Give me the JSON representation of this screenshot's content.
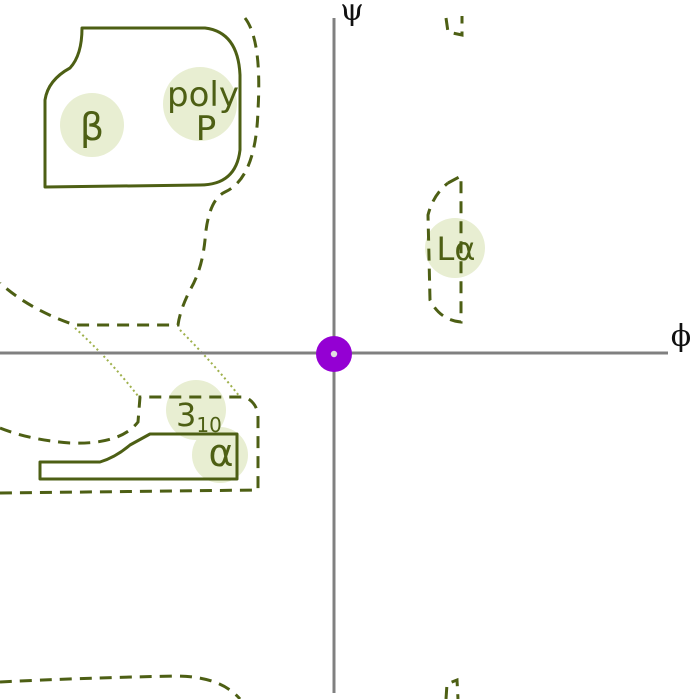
{
  "diagram": {
    "axes": {
      "x_label": "ϕ",
      "y_label": "ψ"
    },
    "regions": {
      "beta": {
        "label": "β"
      },
      "polyP": {
        "label_line1": "poly",
        "label_line2": "P"
      },
      "L_alpha": {
        "label": "Lα"
      },
      "three_ten": {
        "label_base": "3",
        "label_sub": "10"
      },
      "alpha": {
        "label": "α"
      }
    },
    "colors": {
      "contour": "#4d5f14",
      "highlight": "#e8eed2",
      "axis": "#808080",
      "marker": "#9400d3",
      "marker_center": "#e0e0e0"
    }
  }
}
